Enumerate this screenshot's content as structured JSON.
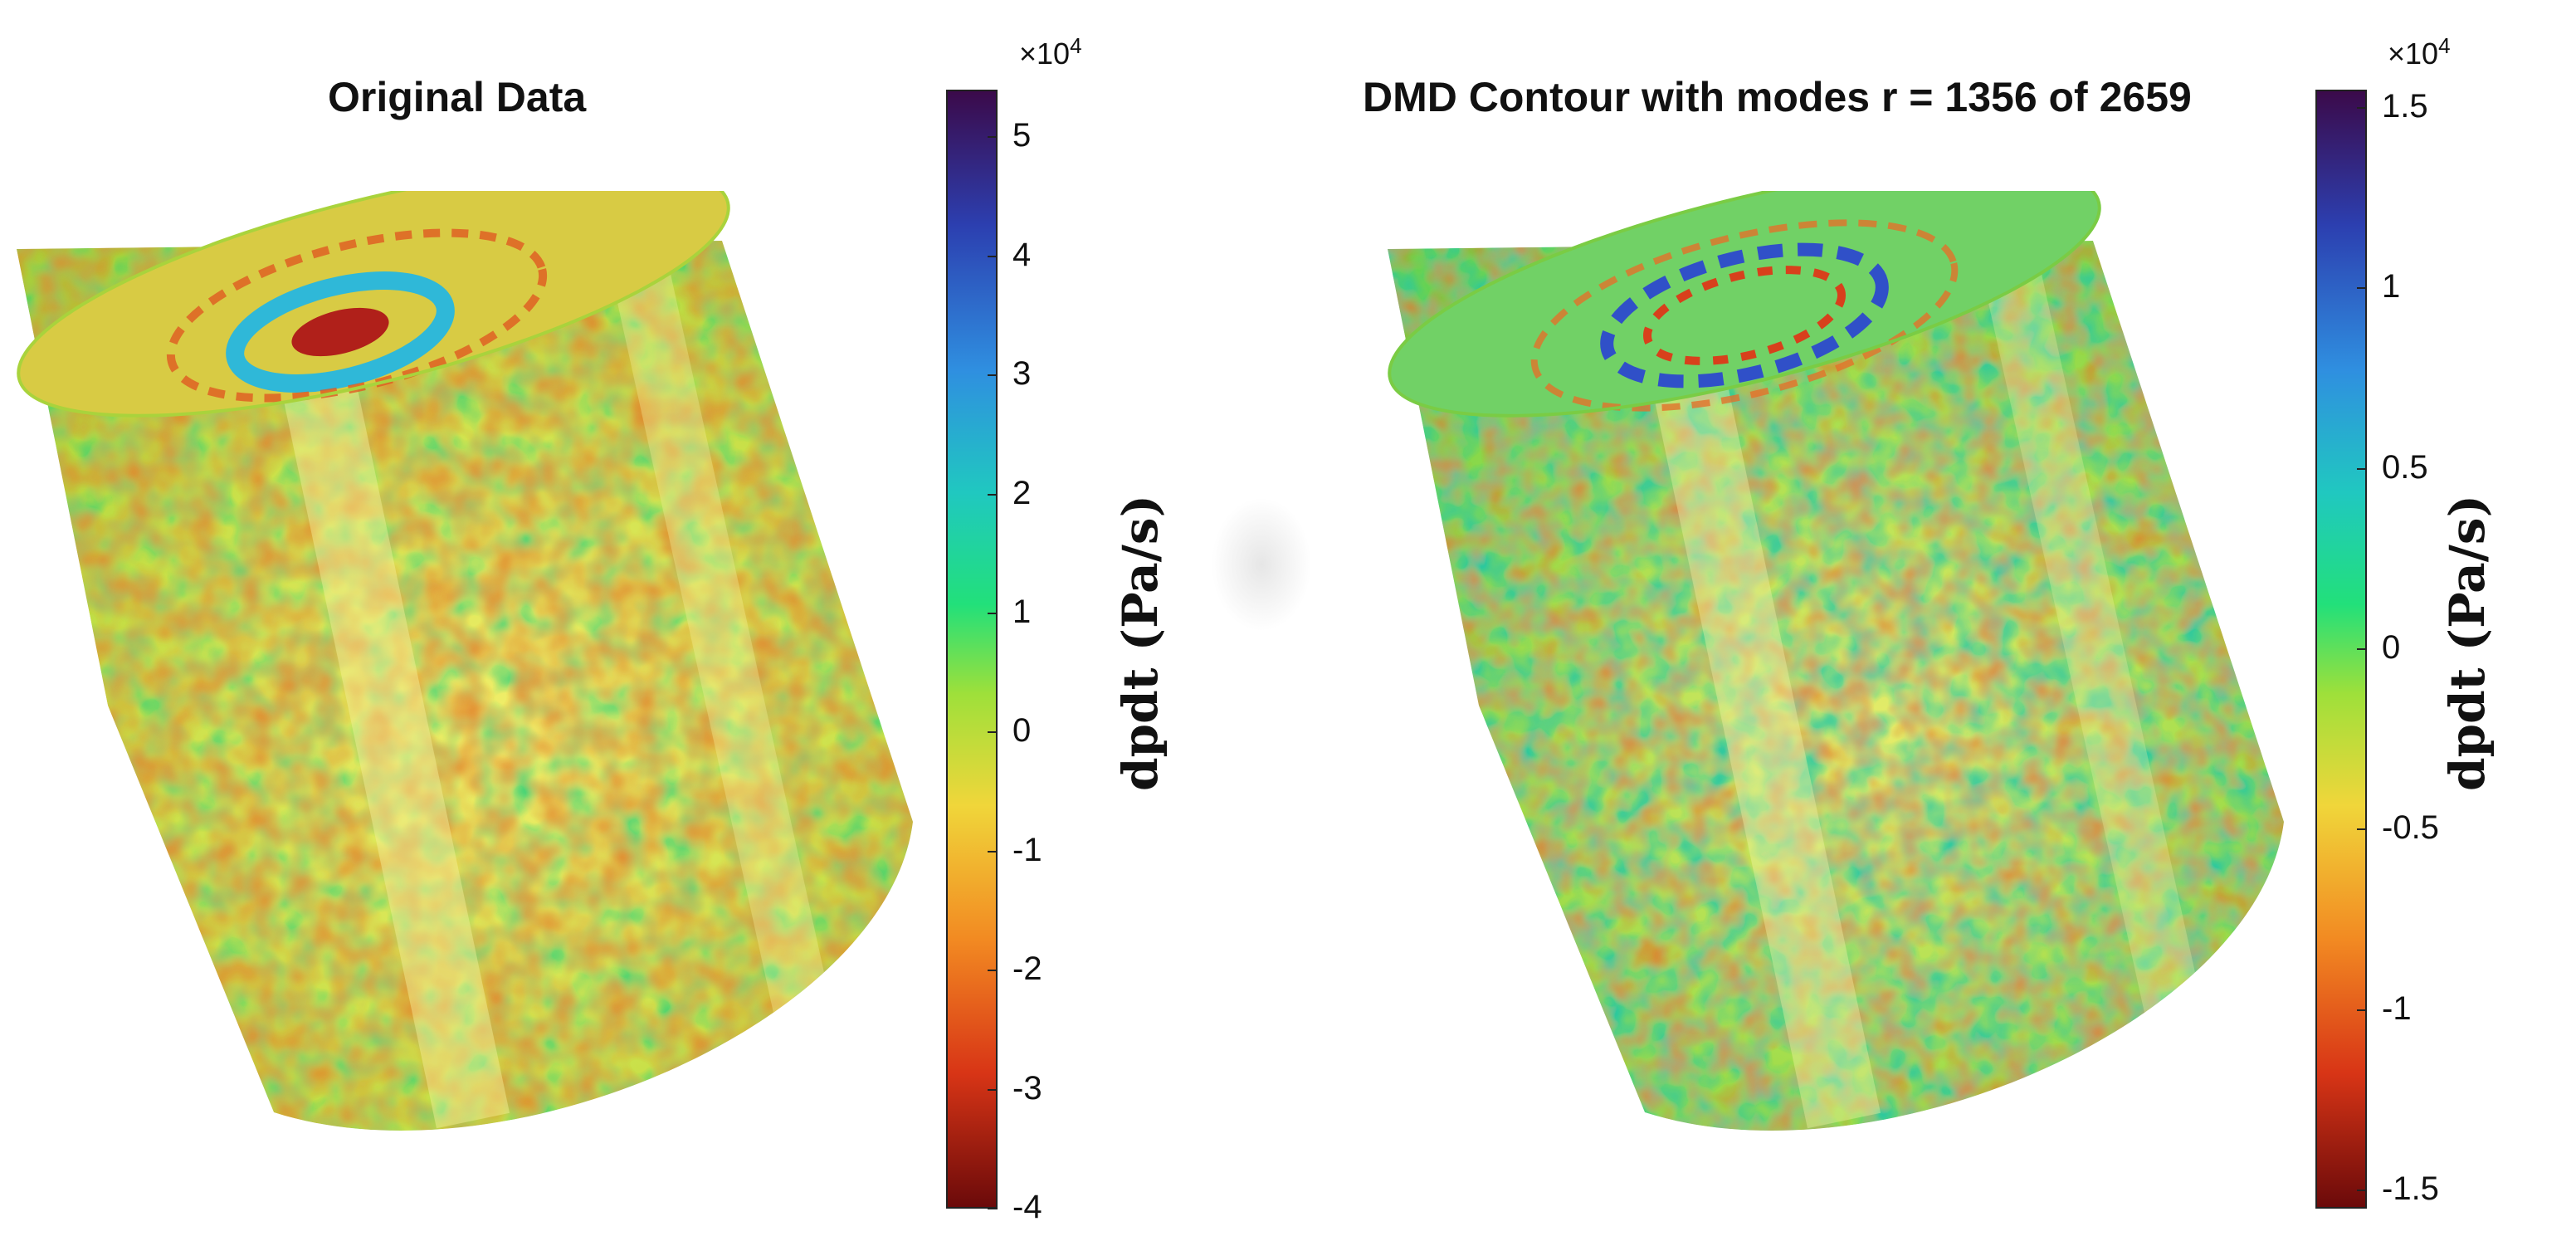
{
  "left": {
    "title": "Original Data",
    "colorbar": {
      "exponent_base": "×10",
      "exponent_power": "4",
      "label": "dpdt  (Pa/s)",
      "ticks": [
        "5",
        "4",
        "3",
        "2",
        "1",
        "0",
        "-1",
        "-2",
        "-3",
        "-4"
      ],
      "range": [
        -4,
        5.4
      ]
    }
  },
  "right": {
    "title": "DMD Contour with modes r = 1356 of 2659",
    "colorbar": {
      "exponent_base": "×10",
      "exponent_power": "4",
      "label": "dpdt  (Pa/s)",
      "ticks": [
        "1.5",
        "1",
        "0.5",
        "0",
        "-0.5",
        "-1",
        "-1.5"
      ],
      "range": [
        -1.55,
        1.55
      ]
    }
  },
  "colors": {
    "jet_top": "#3b0a4a",
    "jet_blue": "#2f6fd6",
    "jet_cyan": "#1fc7c0",
    "jet_green": "#2be35a",
    "jet_yellow": "#e8e23a",
    "jet_orange": "#f0701e",
    "jet_red": "#c01a12",
    "jet_bottom": "#6b0a0a"
  }
}
